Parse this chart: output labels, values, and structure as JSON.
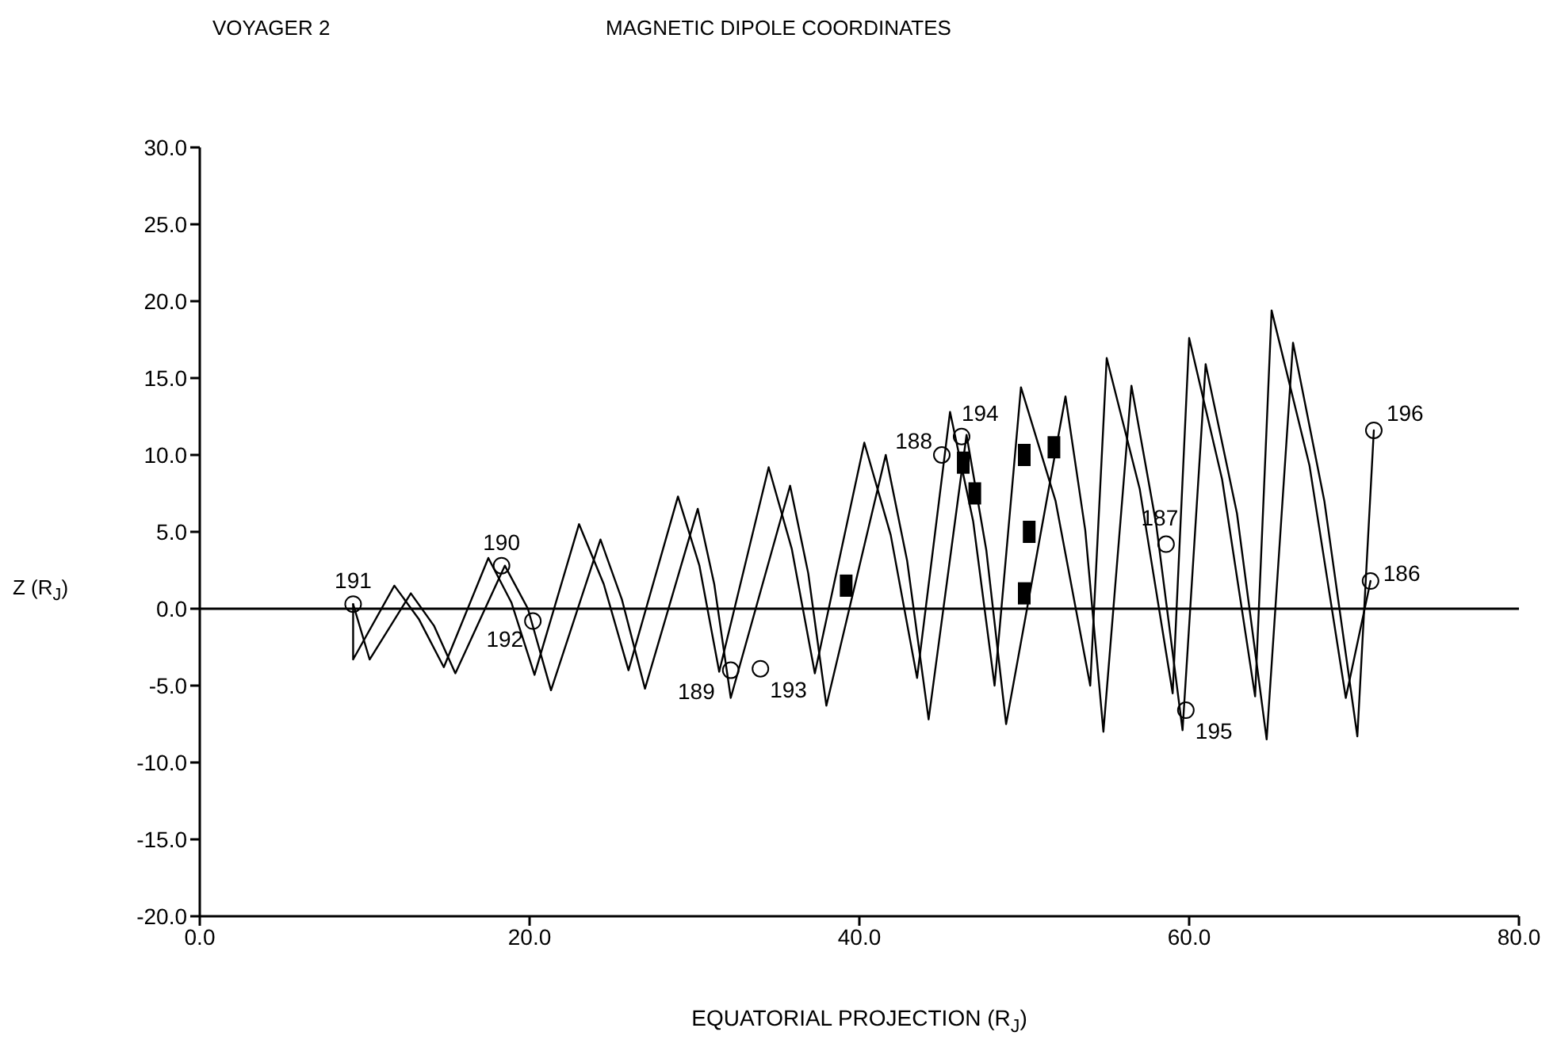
{
  "chart_data": {
    "type": "line",
    "title": "MAGNETIC DIPOLE COORDINATES",
    "xlabel": "EQUATORIAL PROJECTION (R$_{J}$)",
    "ylabel": "Z (R$_{J}$)",
    "xlim": [
      0,
      80
    ],
    "ylim": [
      -20,
      30
    ],
    "xticks": [
      {
        "value": 0,
        "label": "0.0"
      },
      {
        "value": 20,
        "label": "20.0"
      },
      {
        "value": 40,
        "label": "40.0"
      },
      {
        "value": 60,
        "label": "60.0"
      },
      {
        "value": 80,
        "label": "80.0"
      }
    ],
    "yticks": [
      {
        "value": -20,
        "label": "-20.0"
      },
      {
        "value": -15,
        "label": "-15.0"
      },
      {
        "value": -10,
        "label": "-10.0"
      },
      {
        "value": -5,
        "label": "-5.0"
      },
      {
        "value": 0,
        "label": "0.0"
      },
      {
        "value": 5,
        "label": "5.0"
      },
      {
        "value": 10,
        "label": "10.0"
      },
      {
        "value": 15,
        "label": "15.0"
      },
      {
        "value": 20,
        "label": "20.0"
      },
      {
        "value": 25,
        "label": "25.0"
      },
      {
        "value": 30,
        "label": "30.0"
      }
    ],
    "ref_lines": [
      {
        "axis": "y",
        "value": 0,
        "color": "#000000"
      }
    ],
    "series": [
      {
        "color": "#000000",
        "marker": "none",
        "x": [
          9.3,
          9.3,
          11.8,
          13.3,
          14.8,
          17.5,
          18.9,
          20.3,
          23,
          24.5,
          26,
          29,
          30.3,
          31.5,
          34.5,
          35.9,
          37.3,
          40.3,
          41.9,
          43.5,
          45.5,
          46.9,
          48.2,
          49.8,
          51.9,
          54,
          55,
          57,
          59,
          60,
          62,
          64,
          65,
          67.3,
          69.5,
          71
        ],
        "values": [
          0.3,
          -3.3,
          1.5,
          -0.7,
          -3.8,
          3.3,
          0.4,
          -4.3,
          5.5,
          1.6,
          -4.0,
          7.3,
          2.8,
          -4.1,
          9.2,
          3.9,
          -4.2,
          10.8,
          4.8,
          -4.5,
          12.8,
          5.7,
          -5,
          14.4,
          7,
          -5,
          16.3,
          7.8,
          -5.5,
          17.6,
          8.4,
          -5.7,
          19.4,
          9.3,
          -5.8,
          1.8
        ]
      },
      {
        "color": "#000000",
        "marker": "none",
        "x": [
          9.3,
          10.3,
          12.8,
          14.2,
          15.5,
          18.5,
          19.9,
          21.3,
          24.3,
          25.6,
          27,
          30.2,
          31.2,
          32.2,
          35.8,
          36.9,
          38,
          41.6,
          42.9,
          44.2,
          46.5,
          47.7,
          48.9,
          52.5,
          53.7,
          54.8,
          56.5,
          58,
          59.6,
          61,
          62.9,
          64.7,
          66.3,
          68.2,
          70.2,
          71.2
        ],
        "values": [
          0.3,
          -3.3,
          1.0,
          -1.1,
          -4.2,
          2.8,
          0,
          -5.3,
          4.5,
          0.6,
          -5.2,
          6.5,
          1.6,
          -5.8,
          8.0,
          2.3,
          -6.3,
          10.0,
          3.1,
          -7.2,
          11.3,
          3.8,
          -7.5,
          13.8,
          5.1,
          -8,
          14.5,
          5.5,
          -7.9,
          15.9,
          6.2,
          -8.5,
          17.3,
          7,
          -8.3,
          11.6
        ]
      },
      {
        "type": "scatter",
        "color": "#000000",
        "marker": "circle",
        "x": [
          9.3,
          18.3,
          20.2,
          32.2,
          34,
          45,
          46.2,
          58.6,
          59.8,
          71.2,
          71
        ],
        "values": [
          0.3,
          2.8,
          -0.8,
          -4,
          -3.9,
          10,
          11.2,
          4.2,
          -6.6,
          11.6,
          1.8
        ]
      },
      {
        "type": "scatter",
        "color": "#000000",
        "marker": "square",
        "x": [
          39.2,
          46.3,
          47,
          50,
          50.3,
          50,
          51.8
        ],
        "values": [
          1.5,
          9.5,
          7.5,
          10,
          5,
          1,
          10.5
        ]
      }
    ],
    "annotations": [
      "VOYAGER 2",
      {
        "text": "191",
        "x": 9.3,
        "y": 0.3
      },
      {
        "text": "190",
        "x": 18.3,
        "y": 2.8
      },
      {
        "text": "192",
        "x": 20.2,
        "y": -0.8
      },
      {
        "text": "189",
        "x": 32.2,
        "y": -4
      },
      {
        "text": "193",
        "x": 34,
        "y": -3.9
      },
      {
        "text": "188",
        "x": 45,
        "y": 10
      },
      {
        "text": "194",
        "x": 46.2,
        "y": 11.2
      },
      {
        "text": "187",
        "x": 58.6,
        "y": 4.2
      },
      {
        "text": "195",
        "x": 59.8,
        "y": -6.6
      },
      {
        "text": "196",
        "x": 71.2,
        "y": 11.6
      },
      {
        "text": "186",
        "x": 71,
        "y": 1.8
      }
    ]
  }
}
